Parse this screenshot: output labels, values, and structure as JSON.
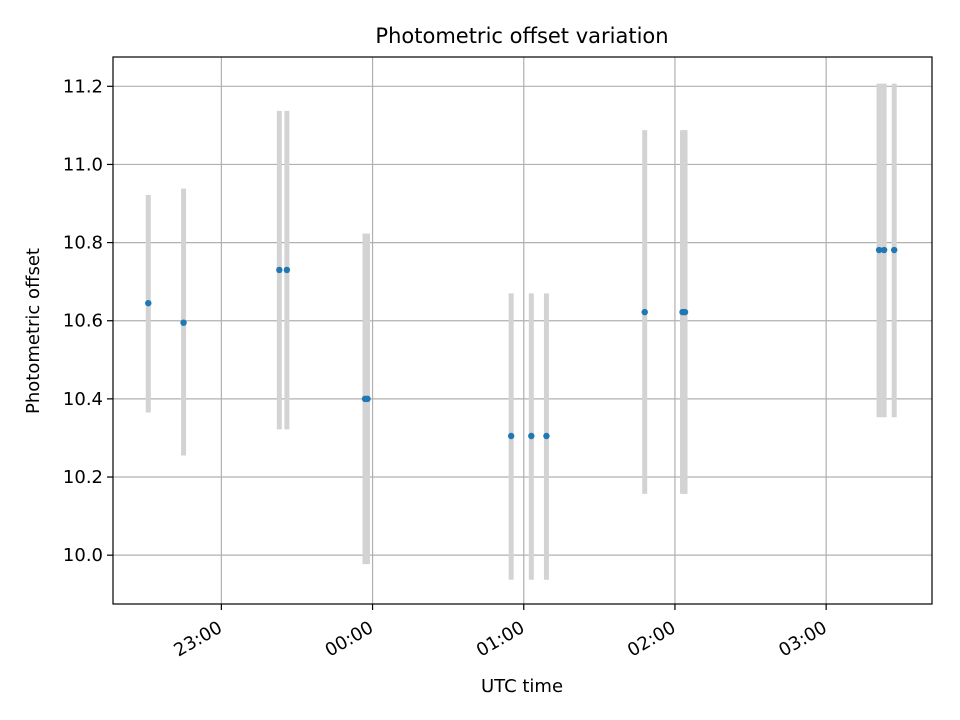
{
  "chart_data": {
    "type": "scatter",
    "title": "Photometric offset variation",
    "xlabel": "UTC time",
    "ylabel": "Photometric offset",
    "x_axis": "time",
    "xlim": [
      "22:17",
      "03:42"
    ],
    "ylim": [
      9.875,
      11.275
    ],
    "xticks": [
      "23:00",
      "00:00",
      "01:00",
      "02:00",
      "03:00"
    ],
    "yticks": [
      10.0,
      10.2,
      10.4,
      10.6,
      10.8,
      11.0,
      11.2
    ],
    "grid": true,
    "colors": {
      "points": "#1f77b4",
      "errorbars": "#d3d3d3"
    },
    "series": [
      {
        "points": [
          {
            "x": "22:31",
            "y": 10.645,
            "ylow": 10.365,
            "yhigh": 10.922
          },
          {
            "x": "22:45",
            "y": 10.595,
            "ylow": 10.255,
            "yhigh": 10.938
          },
          {
            "x": "23:23",
            "y": 10.73,
            "ylow": 10.322,
            "yhigh": 11.137
          },
          {
            "x": "23:26",
            "y": 10.73,
            "ylow": 10.322,
            "yhigh": 11.137
          },
          {
            "x": "23:57",
            "y": 10.4,
            "ylow": 9.977,
            "yhigh": 10.823
          },
          {
            "x": "23:58",
            "y": 10.4,
            "ylow": 9.977,
            "yhigh": 10.823
          },
          {
            "x": "00:55",
            "y": 10.305,
            "ylow": 9.937,
            "yhigh": 10.67
          },
          {
            "x": "01:03",
            "y": 10.305,
            "ylow": 9.937,
            "yhigh": 10.67
          },
          {
            "x": "01:09",
            "y": 10.305,
            "ylow": 9.937,
            "yhigh": 10.67
          },
          {
            "x": "01:48",
            "y": 10.622,
            "ylow": 10.157,
            "yhigh": 11.088
          },
          {
            "x": "02:03",
            "y": 10.622,
            "ylow": 10.157,
            "yhigh": 11.088
          },
          {
            "x": "02:04",
            "y": 10.622,
            "ylow": 10.157,
            "yhigh": 11.088
          },
          {
            "x": "03:21",
            "y": 10.781,
            "ylow": 10.353,
            "yhigh": 11.207
          },
          {
            "x": "03:23",
            "y": 10.781,
            "ylow": 10.353,
            "yhigh": 11.207
          },
          {
            "x": "03:27",
            "y": 10.781,
            "ylow": 10.353,
            "yhigh": 11.207
          }
        ]
      }
    ]
  }
}
